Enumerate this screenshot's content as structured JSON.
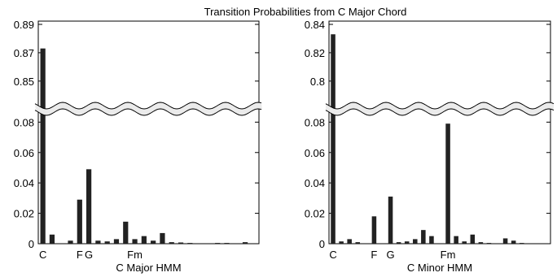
{
  "figure": {
    "title": "Transition Probabilities from C Major Chord"
  },
  "chart_data": [
    {
      "type": "bar",
      "xlabel": "C Major HMM",
      "ylabel": "",
      "broken_axis": true,
      "upper_segment": {
        "ylim": [
          0.835,
          0.89
        ],
        "ticks": [
          "0.89",
          "0.87",
          "0.85"
        ],
        "tick_values": [
          0.89,
          0.87,
          0.85
        ]
      },
      "lower_segment": {
        "ylim": [
          0,
          0.085
        ],
        "ticks": [
          "0.08",
          "0.06",
          "0.04",
          "0.02",
          "0"
        ],
        "tick_values": [
          0.08,
          0.06,
          0.04,
          0.02,
          0
        ]
      },
      "category_labels": [
        {
          "text": "C",
          "index": 0
        },
        {
          "text": "F",
          "index": 5
        },
        {
          "text": "G",
          "index": 7
        },
        {
          "text": "Fm",
          "index": 17
        }
      ],
      "values": [
        0.873,
        0.006,
        0,
        0.002,
        0.029,
        0.049,
        0.002,
        0.0015,
        0.003,
        0.0145,
        0.003,
        0.005,
        0.002,
        0.007,
        0.001,
        0.0008,
        0.0005,
        0,
        0,
        0.0005,
        0.0005,
        0,
        0.001,
        0
      ],
      "label_positions": [
        0,
        3,
        5,
        9
      ]
    },
    {
      "type": "bar",
      "xlabel": "C Minor HMM",
      "ylabel": "",
      "broken_axis": true,
      "upper_segment": {
        "ylim": [
          0.785,
          0.84
        ],
        "ticks": [
          "0.84",
          "0.82",
          "0.8"
        ],
        "tick_values": [
          0.84,
          0.82,
          0.8
        ]
      },
      "lower_segment": {
        "ylim": [
          0,
          0.085
        ],
        "ticks": [
          "0.08",
          "0.06",
          "0.04",
          "0.02",
          "0"
        ],
        "tick_values": [
          0.08,
          0.06,
          0.04,
          0.02,
          0
        ]
      },
      "category_labels": [
        {
          "text": "C",
          "index": 0
        },
        {
          "text": "F",
          "index": 3
        },
        {
          "text": "G",
          "index": 5
        },
        {
          "text": "Fm",
          "index": 10
        }
      ],
      "values": [
        0.833,
        0.0015,
        0.003,
        0.001,
        0,
        0.018,
        0,
        0.031,
        0.001,
        0.0015,
        0.003,
        0.009,
        0.005,
        0,
        0.079,
        0.005,
        0.0015,
        0.006,
        0.001,
        0.0005,
        0,
        0.0035,
        0.002,
        0.0005,
        0,
        0,
        0
      ]
    }
  ]
}
